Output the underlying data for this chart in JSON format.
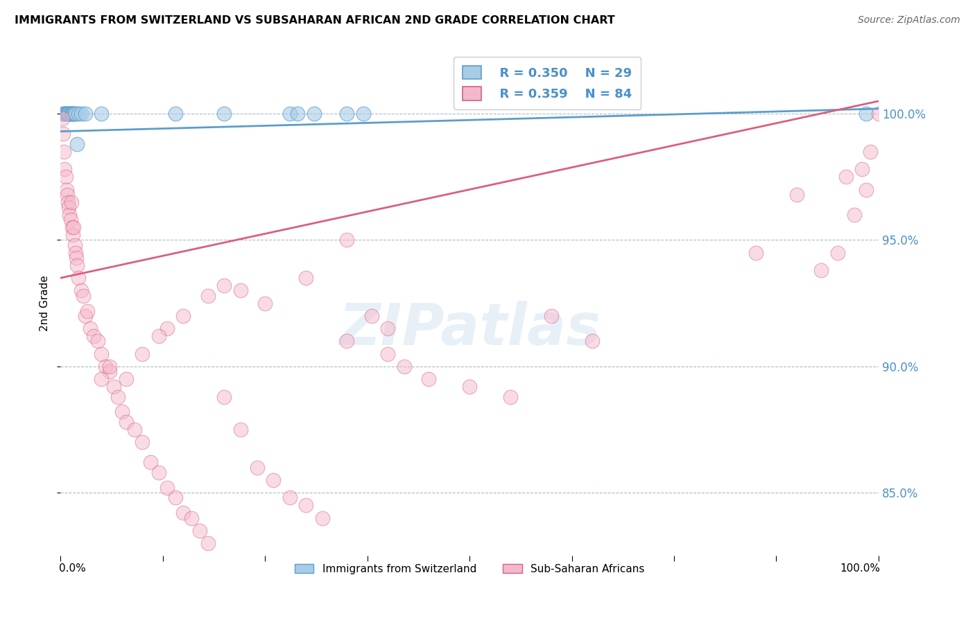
{
  "title": "IMMIGRANTS FROM SWITZERLAND VS SUBSAHARAN AFRICAN 2ND GRADE CORRELATION CHART",
  "source": "Source: ZipAtlas.com",
  "ylabel": "2nd Grade",
  "ytick_labels": [
    "100.0%",
    "95.0%",
    "90.0%",
    "85.0%"
  ],
  "ytick_values": [
    1.0,
    0.95,
    0.9,
    0.85
  ],
  "xlim": [
    0.0,
    1.0
  ],
  "ylim": [
    0.825,
    1.025
  ],
  "legend_r_blue": "R = 0.350",
  "legend_n_blue": "N = 29",
  "legend_r_pink": "R = 0.359",
  "legend_n_pink": "N = 84",
  "legend1_label": "Immigrants from Switzerland",
  "legend2_label": "Sub-Saharan Africans",
  "blue_color": "#a8cce8",
  "blue_edge_color": "#5b9ec9",
  "pink_color": "#f4b8cb",
  "pink_edge_color": "#d9607e",
  "trendline_blue_color": "#5b9ec9",
  "trendline_pink_color": "#d9607e",
  "blue_trendline_x": [
    0.0,
    1.0
  ],
  "blue_trendline_y": [
    0.993,
    1.002
  ],
  "pink_trendline_x": [
    0.0,
    1.0
  ],
  "pink_trendline_y": [
    0.935,
    1.005
  ],
  "blue_scatter_x": [
    0.003,
    0.004,
    0.005,
    0.006,
    0.007,
    0.008,
    0.009,
    0.01,
    0.011,
    0.012,
    0.013,
    0.014,
    0.015,
    0.016,
    0.017,
    0.018,
    0.02,
    0.022,
    0.025,
    0.03,
    0.05,
    0.14,
    0.2,
    0.28,
    0.29,
    0.31,
    0.35,
    0.37,
    0.985
  ],
  "blue_scatter_y": [
    1.0,
    1.0,
    1.0,
    1.0,
    1.0,
    1.0,
    1.0,
    1.0,
    1.0,
    1.0,
    1.0,
    1.0,
    1.0,
    1.0,
    1.0,
    1.0,
    0.988,
    1.0,
    1.0,
    1.0,
    1.0,
    1.0,
    1.0,
    1.0,
    1.0,
    1.0,
    1.0,
    1.0,
    1.0
  ],
  "pink_scatter_x": [
    0.002,
    0.003,
    0.004,
    0.005,
    0.006,
    0.007,
    0.008,
    0.009,
    0.01,
    0.011,
    0.012,
    0.013,
    0.014,
    0.015,
    0.016,
    0.017,
    0.018,
    0.019,
    0.02,
    0.022,
    0.025,
    0.028,
    0.03,
    0.033,
    0.036,
    0.04,
    0.045,
    0.05,
    0.055,
    0.06,
    0.065,
    0.07,
    0.075,
    0.08,
    0.09,
    0.1,
    0.11,
    0.12,
    0.13,
    0.14,
    0.15,
    0.16,
    0.17,
    0.18,
    0.2,
    0.22,
    0.24,
    0.26,
    0.28,
    0.3,
    0.32,
    0.35,
    0.38,
    0.4,
    0.3,
    0.25,
    0.22,
    0.2,
    0.18,
    0.15,
    0.13,
    0.12,
    0.1,
    0.08,
    0.06,
    0.05,
    0.6,
    0.65,
    0.85,
    0.9,
    0.93,
    0.95,
    0.96,
    0.97,
    0.98,
    0.985,
    0.99,
    1.0,
    0.35,
    0.4,
    0.42,
    0.45,
    0.5,
    0.55
  ],
  "pink_scatter_y": [
    0.998,
    0.992,
    0.985,
    0.978,
    0.975,
    0.97,
    0.968,
    0.965,
    0.963,
    0.96,
    0.958,
    0.965,
    0.955,
    0.952,
    0.955,
    0.948,
    0.945,
    0.943,
    0.94,
    0.935,
    0.93,
    0.928,
    0.92,
    0.922,
    0.915,
    0.912,
    0.91,
    0.905,
    0.9,
    0.898,
    0.892,
    0.888,
    0.882,
    0.878,
    0.875,
    0.87,
    0.862,
    0.858,
    0.852,
    0.848,
    0.842,
    0.84,
    0.835,
    0.83,
    0.888,
    0.875,
    0.86,
    0.855,
    0.848,
    0.845,
    0.84,
    0.95,
    0.92,
    0.915,
    0.935,
    0.925,
    0.93,
    0.932,
    0.928,
    0.92,
    0.915,
    0.912,
    0.905,
    0.895,
    0.9,
    0.895,
    0.92,
    0.91,
    0.945,
    0.968,
    0.938,
    0.945,
    0.975,
    0.96,
    0.978,
    0.97,
    0.985,
    1.0,
    0.91,
    0.905,
    0.9,
    0.895,
    0.892,
    0.888
  ]
}
